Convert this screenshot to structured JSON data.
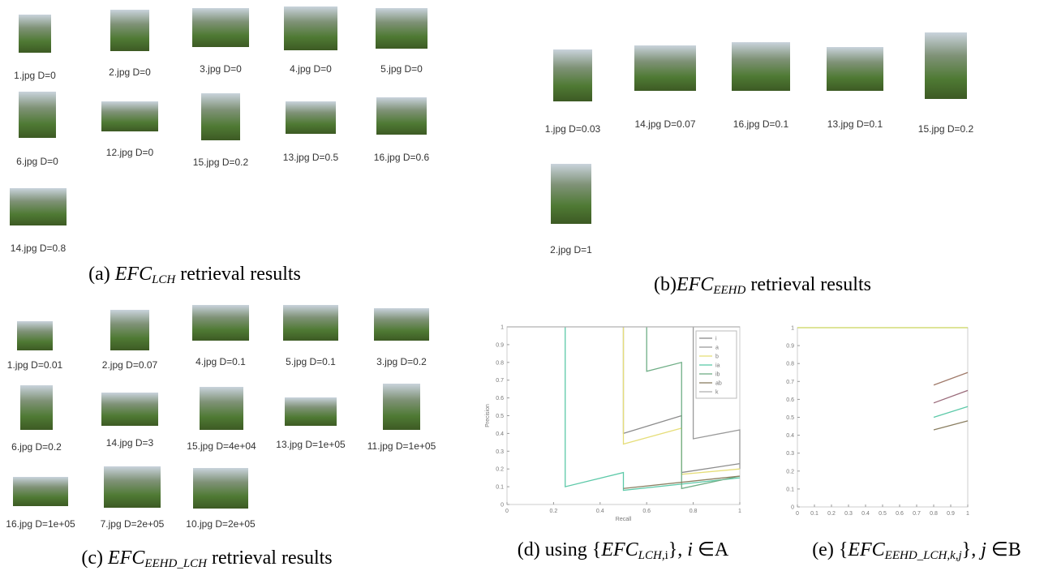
{
  "panels": [
    {
      "items": [
        "1.jpg D=0",
        "2.jpg D=0",
        "3.jpg D=0",
        "4.jpg D=0",
        "5.jpg D=0",
        "6.jpg D=0",
        "12.jpg D=0",
        "15.jpg D=0.2",
        "13.jpg D=0.5",
        "16.jpg D=0.6",
        "14.jpg D=0.8"
      ],
      "caption": [
        {
          "text": "(a) ",
          "style": "n"
        },
        {
          "text": "EFC",
          "style": "i"
        },
        {
          "text": "LCH",
          "style": "sub"
        },
        {
          "text": " retrieval results",
          "style": "n"
        }
      ]
    },
    {
      "items": [
        "1.jpg D=0.03",
        "14.jpg D=0.07",
        "16.jpg D=0.1",
        "13.jpg D=0.1",
        "15.jpg D=0.2",
        "2.jpg D=1"
      ],
      "caption": [
        {
          "text": "(b)",
          "style": "n"
        },
        {
          "text": "EFC",
          "style": "i"
        },
        {
          "text": "EEHD",
          "style": "sub"
        },
        {
          "text": "  retrieval results",
          "style": "n"
        }
      ]
    },
    {
      "items": [
        "1.jpg D=0.01",
        "2.jpg D=0.07",
        "4.jpg D=0.1",
        "5.jpg D=0.1",
        "3.jpg D=0.2",
        "6.jpg D=0.2",
        "14.jpg D=3",
        "15.jpg D=4e+04",
        "13.jpg D=1e+05",
        "11.jpg D=1e+05",
        "16.jpg D=1e+05",
        "7.jpg D=2e+05",
        "10.jpg D=2e+05"
      ],
      "caption": [
        {
          "text": "(c) ",
          "style": "n"
        },
        {
          "text": "EFC",
          "style": "i"
        },
        {
          "text": "EEHD_LCH",
          "style": "sub"
        },
        {
          "text": "  retrieval results",
          "style": "n"
        }
      ]
    },
    {
      "caption": [
        {
          "text": "(d) using {",
          "style": "n"
        },
        {
          "text": "EFC",
          "style": "i"
        },
        {
          "text": "LCH,",
          "style": "sub"
        },
        {
          "text": "i",
          "style": "subn"
        },
        {
          "text": "}, ",
          "style": "n"
        },
        {
          "text": "i",
          "style": "i"
        },
        {
          "text": " ∈A",
          "style": "n"
        }
      ]
    },
    {
      "caption": [
        {
          "text": "(e) {",
          "style": "n"
        },
        {
          "text": "EFC",
          "style": "i"
        },
        {
          "text": "EEHD_LCH,k,j",
          "style": "sub"
        },
        {
          "text": "}, ",
          "style": "n"
        },
        {
          "text": "j",
          "style": "i"
        },
        {
          "text": " ∈B",
          "style": "n"
        }
      ]
    }
  ],
  "chart_data": [
    {
      "type": "line",
      "xlabel": "Recall",
      "ylabel": "Precision",
      "xlim": [
        0,
        1
      ],
      "ylim": [
        0,
        1
      ],
      "xticks": [
        0,
        0.2,
        0.4,
        0.6,
        0.8,
        1
      ],
      "yticks": [
        0,
        0.1,
        0.2,
        0.3,
        0.4,
        0.5,
        0.6,
        0.7,
        0.8,
        0.9,
        1
      ],
      "legend": "top-right",
      "series": [
        {
          "name": "i",
          "color": "#8c8c8c",
          "x": [
            0.5,
            0.5,
            0.75,
            0.75,
            1
          ],
          "values": [
            1,
            0.4,
            0.5,
            0.18,
            0.23
          ]
        },
        {
          "name": "a",
          "color": "#9a9a9a",
          "x": [
            0.8,
            0.8,
            1,
            1
          ],
          "values": [
            1,
            0.37,
            0.42,
            0.2
          ]
        },
        {
          "name": "b",
          "color": "#e6de7a",
          "x": [
            0.5,
            0.5,
            0.75,
            0.75,
            1
          ],
          "values": [
            1,
            0.34,
            0.43,
            0.17,
            0.2
          ]
        },
        {
          "name": "ia",
          "color": "#5cc9a8",
          "x": [
            0.25,
            0.25,
            0.5,
            0.5,
            1
          ],
          "values": [
            1,
            0.1,
            0.18,
            0.08,
            0.15
          ]
        },
        {
          "name": "ib",
          "color": "#6fae86",
          "x": [
            0.6,
            0.6,
            0.75,
            0.75,
            1
          ],
          "values": [
            1,
            0.75,
            0.8,
            0.09,
            0.16
          ]
        },
        {
          "name": "ab",
          "color": "#8a7e60",
          "x": [
            0.5,
            1
          ],
          "values": [
            0.09,
            0.16
          ]
        },
        {
          "name": "k",
          "color": "#b0b0b0",
          "x": [
            0,
            0.25,
            0.5,
            0.75,
            1
          ],
          "values": [
            1,
            1,
            1,
            1,
            1
          ]
        }
      ]
    },
    {
      "type": "line",
      "xlim": [
        0,
        1
      ],
      "ylim": [
        0,
        1
      ],
      "xticks": [
        0,
        0.1,
        0.2,
        0.3,
        0.4,
        0.5,
        0.6,
        0.7,
        0.8,
        0.9,
        1
      ],
      "yticks": [
        0,
        0.1,
        0.2,
        0.3,
        0.4,
        0.5,
        0.6,
        0.7,
        0.8,
        0.9,
        1
      ],
      "series": [
        {
          "color": "#c9d45a",
          "x": [
            0,
            1
          ],
          "values": [
            1,
            1
          ]
        },
        {
          "color": "#a07a6a",
          "x": [
            0.8,
            1
          ],
          "values": [
            0.68,
            0.75
          ]
        },
        {
          "color": "#9a6a7a",
          "x": [
            0.8,
            1
          ],
          "values": [
            0.58,
            0.65
          ]
        },
        {
          "color": "#5cc9a8",
          "x": [
            0.8,
            1
          ],
          "values": [
            0.5,
            0.56
          ]
        },
        {
          "color": "#8a7e60",
          "x": [
            0.8,
            1
          ],
          "values": [
            0.43,
            0.48
          ]
        }
      ]
    }
  ]
}
